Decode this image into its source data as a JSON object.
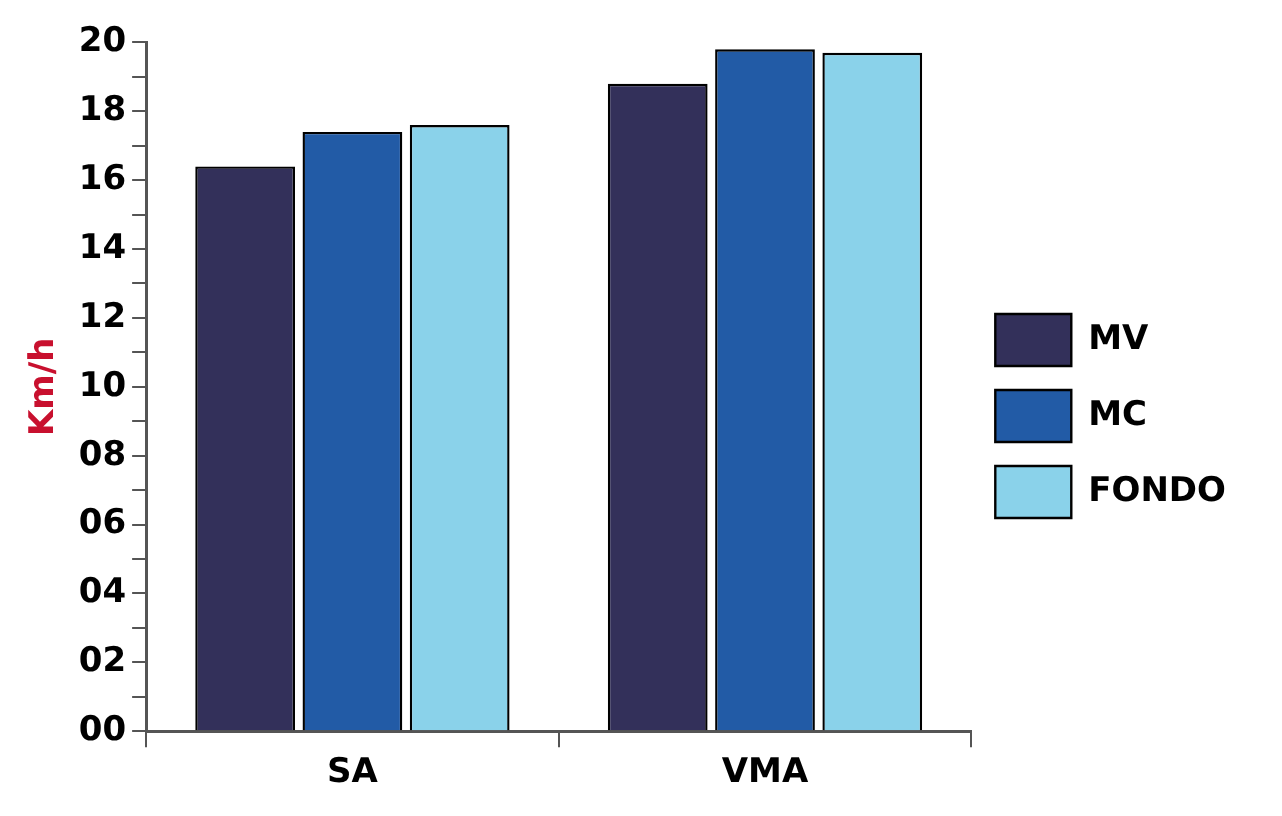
{
  "chart_data": {
    "type": "bar",
    "ylabel": "Km/h",
    "categories": [
      "SA",
      "VMA"
    ],
    "series": [
      {
        "name": "MV",
        "color": "#33305a",
        "values": [
          16.4,
          18.8
        ]
      },
      {
        "name": "MC",
        "color": "#225ba6",
        "values": [
          17.4,
          19.8
        ]
      },
      {
        "name": "FONDO",
        "color": "#8ad2ea",
        "values": [
          17.6,
          19.7
        ]
      }
    ],
    "ylim": [
      0,
      20
    ],
    "yticks": [
      {
        "value": 0,
        "label": "00"
      },
      {
        "value": 1,
        "label": null
      },
      {
        "value": 2,
        "label": "02"
      },
      {
        "value": 3,
        "label": null
      },
      {
        "value": 4,
        "label": "04"
      },
      {
        "value": 5,
        "label": null
      },
      {
        "value": 6,
        "label": "06"
      },
      {
        "value": 7,
        "label": null
      },
      {
        "value": 8,
        "label": "08"
      },
      {
        "value": 9,
        "label": null
      },
      {
        "value": 10,
        "label": "10"
      },
      {
        "value": 11,
        "label": null
      },
      {
        "value": 12,
        "label": "12"
      },
      {
        "value": 13,
        "label": null
      },
      {
        "value": 14,
        "label": "14"
      },
      {
        "value": 15,
        "label": null
      },
      {
        "value": 16,
        "label": "16"
      },
      {
        "value": 17,
        "label": null
      },
      {
        "value": 18,
        "label": "18"
      },
      {
        "value": 19,
        "label": null
      },
      {
        "value": 20,
        "label": "20"
      }
    ],
    "grid": false,
    "legend": "right"
  }
}
